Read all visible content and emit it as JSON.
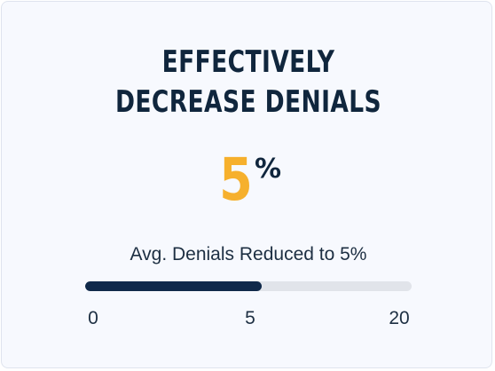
{
  "card": {
    "title_line1": "EFFECTIVELY",
    "title_line2": "DECREASE DENIALS",
    "metric_value": "5",
    "metric_unit": "%",
    "caption": "Avg. Denials Reduced to 5%"
  },
  "progress": {
    "value": 5,
    "scale_min": 0,
    "scale_max": 20,
    "fill_fraction": 0.54,
    "tick_labels": [
      "0",
      "5",
      "20"
    ]
  },
  "colors": {
    "accent": "#f6b02d",
    "text_dark": "#10263d",
    "bar_fill": "#10294a",
    "bar_track": "#e1e4ea",
    "card_bg": "#f7f9fe"
  }
}
